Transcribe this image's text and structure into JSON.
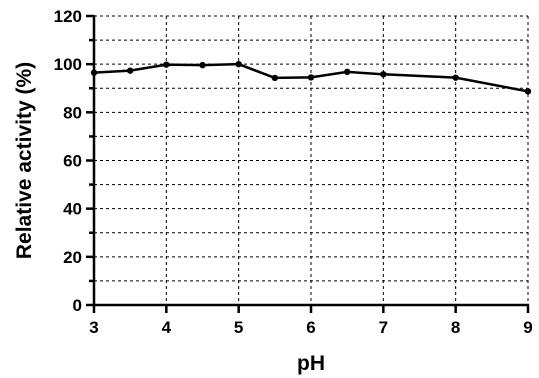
{
  "chart_data": {
    "type": "line",
    "xlabel": "pH",
    "ylabel": "Relative activity (%)",
    "xlim": [
      3,
      9
    ],
    "ylim": [
      0,
      120
    ],
    "x_ticks": [
      3,
      4,
      5,
      6,
      7,
      8,
      9
    ],
    "y_ticks": [
      0,
      20,
      40,
      60,
      80,
      100,
      120
    ],
    "grid": true,
    "series": [
      {
        "x": [
          3,
          3.5,
          4,
          4.5,
          5,
          5.5,
          6,
          6.5,
          7,
          8,
          9
        ],
        "y": [
          96.5,
          97.3,
          99.8,
          99.6,
          100,
          94.3,
          94.5,
          96.8,
          95.8,
          94.4,
          88.7
        ]
      }
    ]
  }
}
